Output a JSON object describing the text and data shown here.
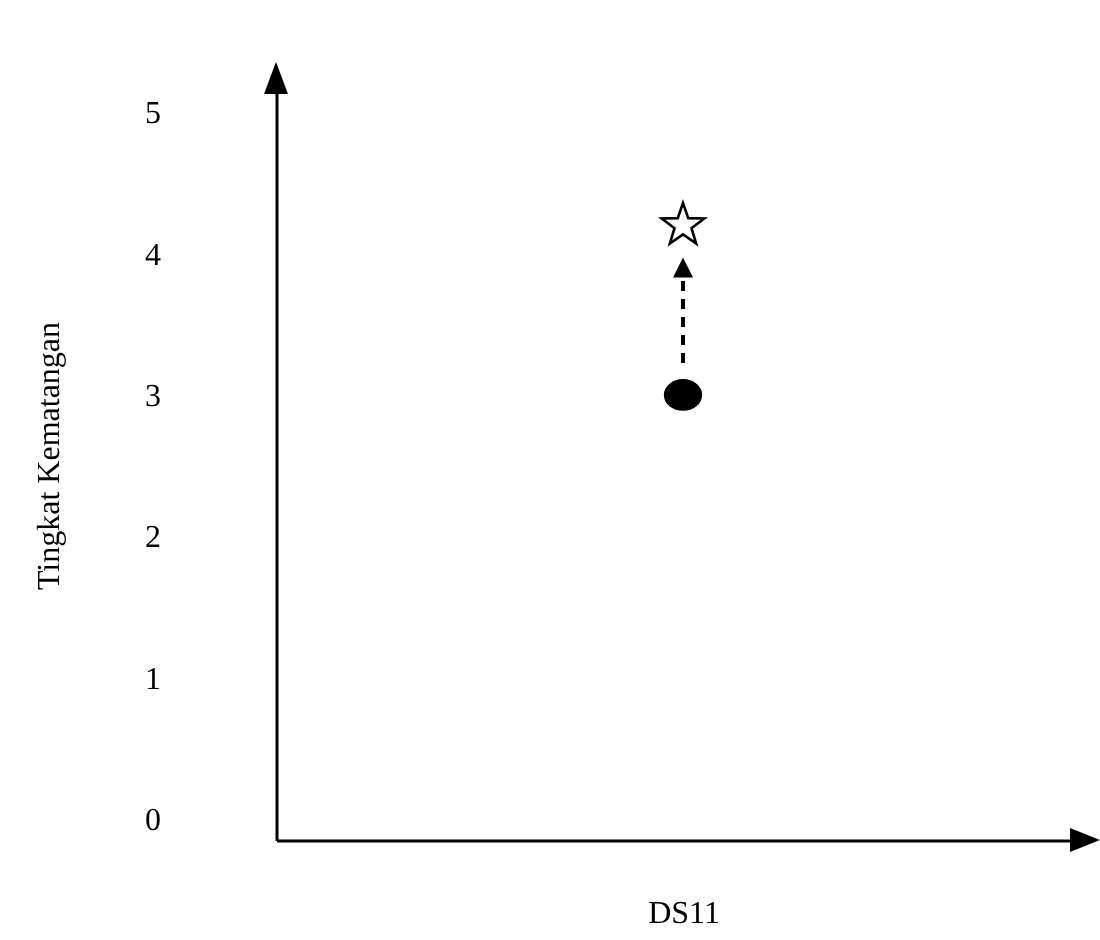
{
  "chart_data": {
    "type": "scatter",
    "xlabel": "DS11",
    "ylabel": "Tingkat Kematangan",
    "categories": [
      null
    ],
    "series": [
      {
        "color": "#000000",
        "values": [
          3
        ],
        "marker": "circle"
      },
      {
        "color": "#000000",
        "values": [
          4.2
        ],
        "marker": "star"
      }
    ],
    "ylim": [
      -0.15,
      5.3
    ],
    "yticks": [
      0,
      1,
      2,
      3,
      4,
      5
    ],
    "grid": false,
    "tick_labels": "y"
  }
}
